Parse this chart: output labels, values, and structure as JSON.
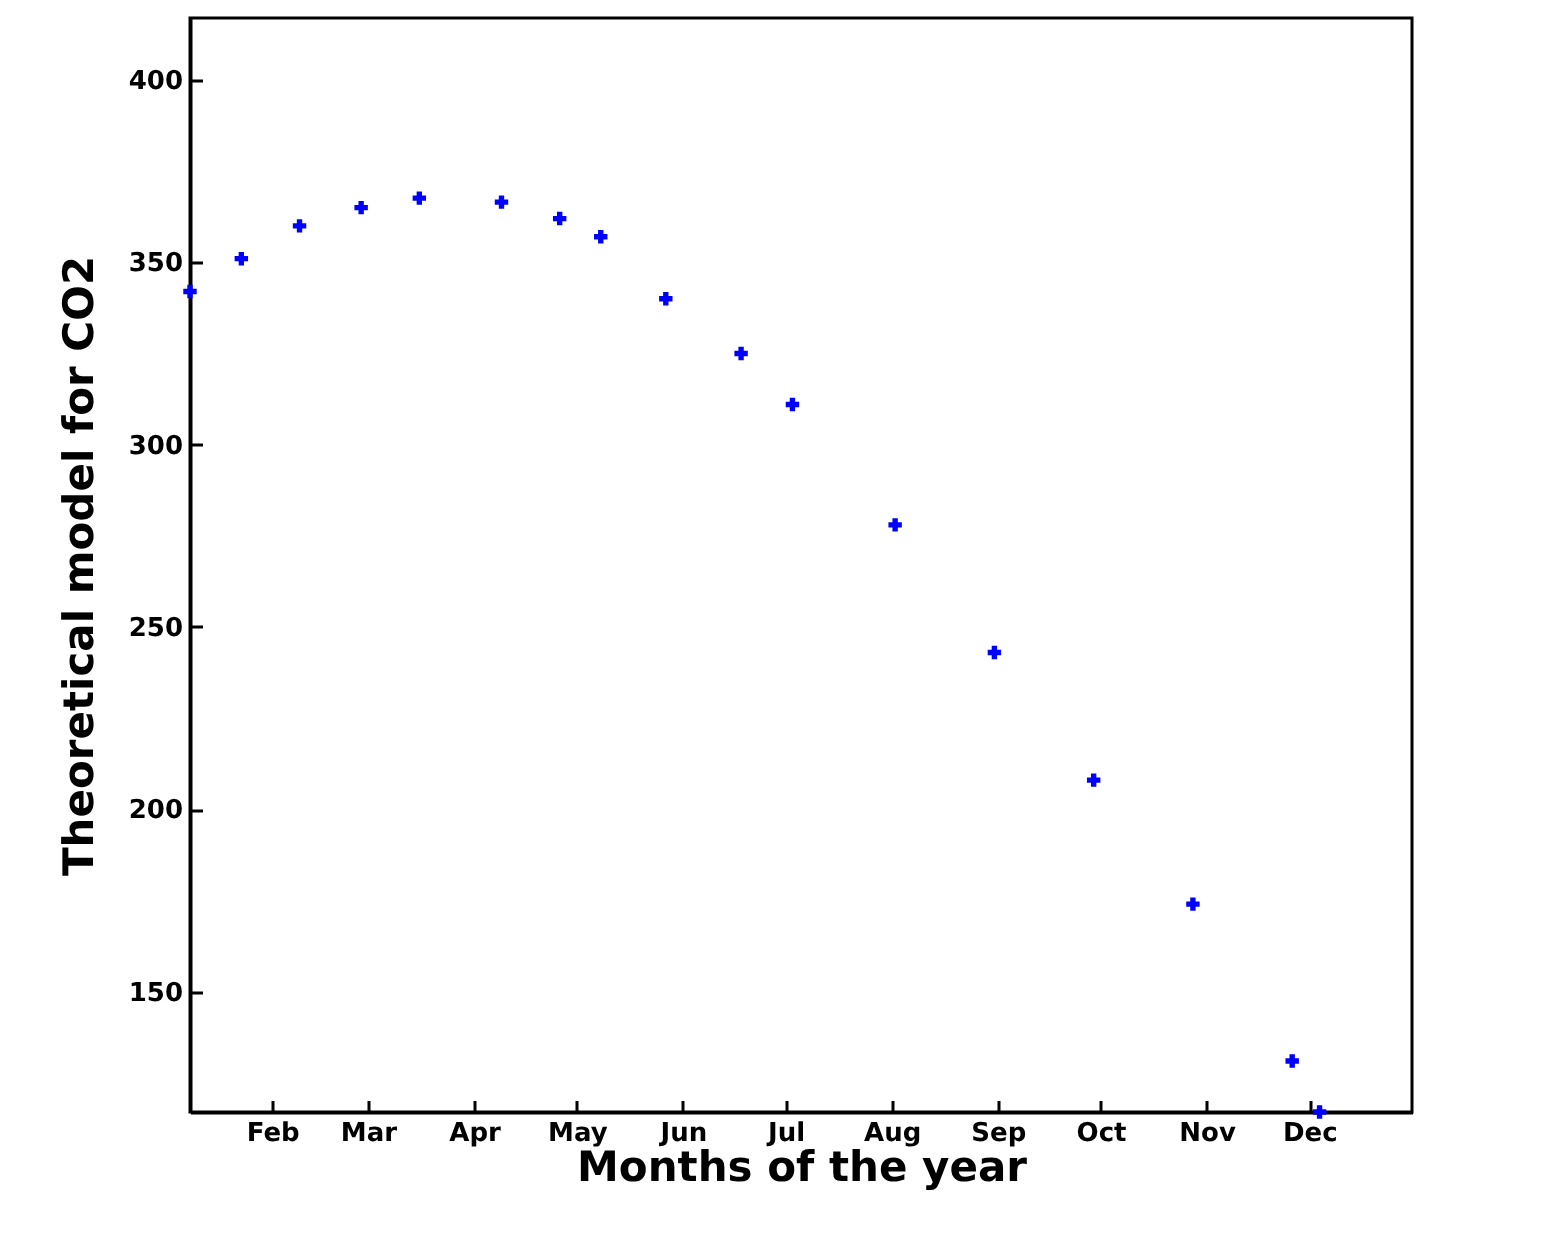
{
  "chart_data": {
    "type": "scatter",
    "xlabel": "Months of the year",
    "ylabel": "Theoretical model for CO2",
    "x": [
      "--01-08",
      "--01-23",
      "--02-09",
      "--02-27",
      "--03-16",
      "--04-09",
      "--04-26",
      "--05-08",
      "--05-27",
      "--06-18",
      "--07-03",
      "--08-02",
      "--08-31",
      "--09-29",
      "--10-28",
      "--11-26",
      "--12-04"
    ],
    "series": [
      {
        "color": "#0000ff",
        "values": [
          342,
          351,
          360,
          365,
          367.6,
          366.5,
          362,
          357,
          340,
          325,
          311,
          278,
          243,
          208,
          174,
          131,
          117
        ]
      }
    ],
    "marker": "cross",
    "xlim": [
      "--01-08",
      "--12-31"
    ],
    "ylim": [
      117,
      417
    ],
    "xticks": [
      {
        "value": "--02-01",
        "label": "Feb"
      },
      {
        "value": "--03-01",
        "label": "Mar"
      },
      {
        "value": "--04-01",
        "label": "Apr"
      },
      {
        "value": "--05-01",
        "label": "May"
      },
      {
        "value": "--06-01",
        "label": "Jun"
      },
      {
        "value": "--07-01",
        "label": "Jul"
      },
      {
        "value": "--08-01",
        "label": "Aug"
      },
      {
        "value": "--09-01",
        "label": "Sep"
      },
      {
        "value": "--10-01",
        "label": "Oct"
      },
      {
        "value": "--11-01",
        "label": "Nov"
      },
      {
        "value": "--12-01",
        "label": "Dec"
      }
    ],
    "yticks": [
      150,
      200,
      250,
      300,
      350,
      400
    ]
  }
}
